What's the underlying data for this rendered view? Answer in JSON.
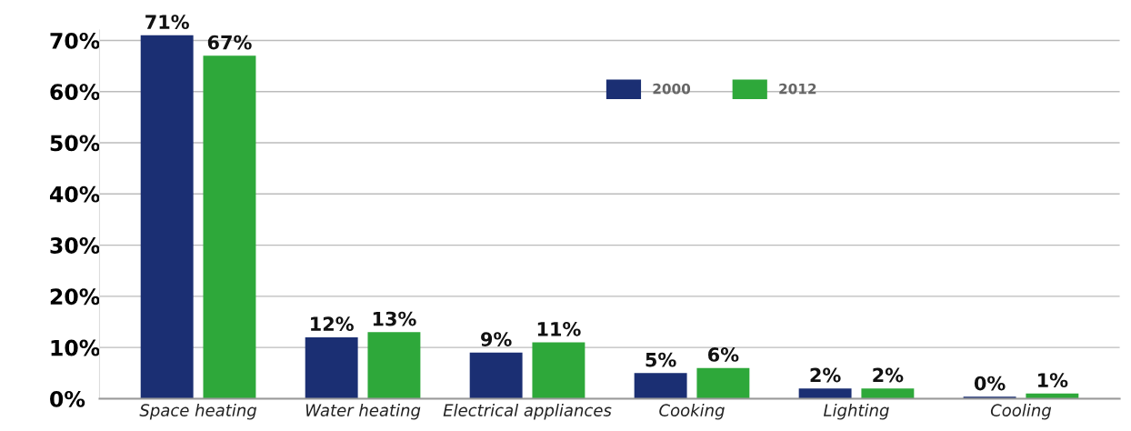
{
  "chart_data": {
    "type": "bar",
    "categories": [
      "Space heating",
      "Water heating",
      "Electrical appliances",
      "Cooking",
      "Lighting",
      "Cooling"
    ],
    "series": [
      {
        "name": "2000",
        "color": "#1b2f73",
        "values": [
          71,
          12,
          9,
          5,
          2,
          0.4
        ],
        "value_labels": [
          "71%",
          "12%",
          "9%",
          "5%",
          "2%",
          "0%"
        ]
      },
      {
        "name": "2012",
        "color": "#2ea83a",
        "values": [
          67,
          13,
          11,
          6,
          2,
          1
        ],
        "value_labels": [
          "67%",
          "13%",
          "11%",
          "6%",
          "2%",
          "1%"
        ]
      }
    ],
    "ylim": [
      0,
      72
    ],
    "yticks": [
      {
        "value": 0,
        "label": "0%"
      },
      {
        "value": 10,
        "label": "10%"
      },
      {
        "value": 20,
        "label": "20%"
      },
      {
        "value": 30,
        "label": "30%"
      },
      {
        "value": 40,
        "label": "40%"
      },
      {
        "value": 50,
        "label": "50%"
      },
      {
        "value": 60,
        "label": "60%"
      },
      {
        "value": 70,
        "label": "70%"
      }
    ],
    "grid": "y",
    "legend": "top"
  }
}
